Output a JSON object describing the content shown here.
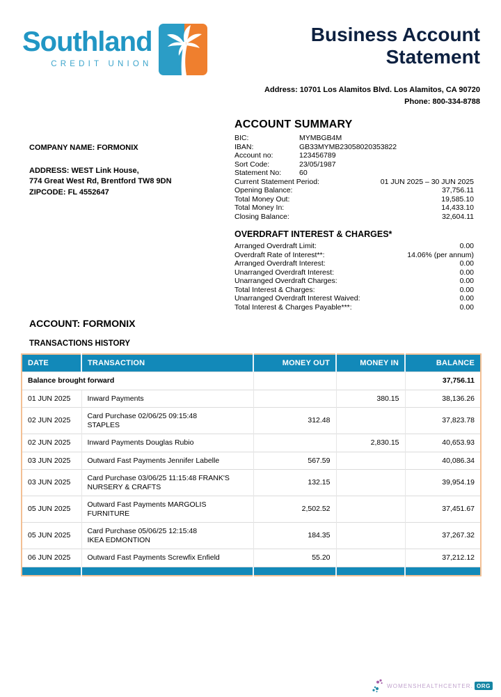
{
  "logo": {
    "name": "Southland",
    "tagline": "CREDIT UNION",
    "palm_icon": "palm-tree-icon",
    "colors": {
      "logo_teal": "#2196C4",
      "tagline_teal": "#3BA4CB",
      "badge_teal": "#2B9DC6",
      "badge_orange": "#EF7F2E"
    }
  },
  "header": {
    "title_line1": "Business Account",
    "title_line2": "Statement",
    "address": "Address: 10701 Los Alamitos Blvd. Los Alamitos, CA 90720",
    "phone": "Phone: 800-334-8788"
  },
  "company": {
    "name_line": "COMPANY NAME: FORMONIX",
    "address_line1": "ADDRESS: WEST Link House,",
    "address_line2": "774 Great West Rd, Brentford TW8 9DN",
    "zipcode_line": "ZIPCODE: FL 4552647"
  },
  "account_summary": {
    "heading": "ACCOUNT SUMMARY",
    "rows": [
      {
        "label": "BIC:",
        "value": "MYMBGB4M",
        "align": "left"
      },
      {
        "label": "IBAN:",
        "value": "GB33MYMB23058020353822",
        "align": "left"
      },
      {
        "label": "Account no:",
        "value": "123456789",
        "align": "left"
      },
      {
        "label": "Sort Code:",
        "value": "23/05/1987",
        "align": "left"
      },
      {
        "label": "Statement No:",
        "value": "60",
        "align": "left"
      },
      {
        "label": "Current Statement Period:",
        "value": "01 JUN 2025 – 30 JUN 2025",
        "align": "right"
      },
      {
        "label": "Opening Balance:",
        "value": "37,756.11",
        "align": "right"
      },
      {
        "label": "Total Money Out:",
        "value": "19,585.10",
        "align": "right"
      },
      {
        "label": "Total Money In:",
        "value": "14,433.10",
        "align": "right"
      },
      {
        "label": "Closing Balance:",
        "value": "32,604.11",
        "align": "right"
      }
    ]
  },
  "overdraft": {
    "heading": "OVERDRAFT INTEREST & CHARGES*",
    "rows": [
      {
        "label": "Arranged Overdraft Limit:",
        "value": "0.00",
        "align": "right"
      },
      {
        "label": "Overdraft Rate of Interest**:",
        "value": "14.06% (per annum)",
        "align": "right"
      },
      {
        "label": "Arranged Overdraft Interest:",
        "value": "0.00",
        "align": "right"
      },
      {
        "label": "Unarranged Overdraft Interest:",
        "value": "0.00",
        "align": "right"
      },
      {
        "label": "Unarranged Overdraft Charges:",
        "value": "0.00",
        "align": "right"
      },
      {
        "label": "Total Interest & Charges:",
        "value": "0.00",
        "align": "right"
      },
      {
        "label": "Unarranged Overdraft Interest Waived:",
        "value": "0.00",
        "align": "right"
      },
      {
        "label": "Total Interest & Charges Payable***:",
        "value": "0.00",
        "align": "right"
      }
    ]
  },
  "account_section": {
    "heading": "ACCOUNT: FORMONIX",
    "subheading": "TRANSACTIONS HISTORY"
  },
  "transactions": {
    "columns": [
      "DATE",
      "TRANSACTION",
      "MONEY OUT",
      "MONEY IN",
      "BALANCE"
    ],
    "header_color": "#1289B9",
    "border_color": "#F3C094",
    "rows": [
      {
        "date": "",
        "transaction": "Balance brought forward",
        "money_out": "",
        "money_in": "",
        "balance": "37,756.11",
        "bold": true
      },
      {
        "date": "01 JUN 2025",
        "transaction": "Inward Payments",
        "money_out": "",
        "money_in": "380.15",
        "balance": "38,136.26",
        "bold": false
      },
      {
        "date": "02 JUN 2025",
        "transaction": "Card Purchase 02/06/25 09:15:48\nSTAPLES",
        "money_out": "312.48",
        "money_in": "",
        "balance": "37,823.78",
        "bold": false
      },
      {
        "date": "02 JUN 2025",
        "transaction": "Inward Payments Douglas Rubio",
        "money_out": "",
        "money_in": "2,830.15",
        "balance": "40,653.93",
        "bold": false
      },
      {
        "date": "03 JUN 2025",
        "transaction": "Outward Fast Payments Jennifer Labelle",
        "money_out": "567.59",
        "money_in": "",
        "balance": "40,086.34",
        "bold": false
      },
      {
        "date": "03 JUN 2025",
        "transaction": "Card Purchase 03/06/25 11:15:48 FRANK'S\nNURSERY & CRAFTS",
        "money_out": "132.15",
        "money_in": "",
        "balance": "39,954.19",
        "bold": false
      },
      {
        "date": "05 JUN 2025",
        "transaction": "Outward Fast Payments MARGOLIS\nFURNITURE",
        "money_out": "2,502.52",
        "money_in": "",
        "balance": "37,451.67",
        "bold": false
      },
      {
        "date": "05 JUN 2025",
        "transaction": "Card Purchase 05/06/25 12:15:48\nIKEA EDMONTION",
        "money_out": "184.35",
        "money_in": "",
        "balance": "37,267.32",
        "bold": false
      },
      {
        "date": "06 JUN 2025",
        "transaction": "Outward Fast Payments Screwfix Enfield",
        "money_out": "55.20",
        "money_in": "",
        "balance": "37,212.12",
        "bold": false
      }
    ]
  },
  "footer": {
    "brand": "WOMENSHEALTHCENTER.",
    "brand_suffix": "ORG",
    "dots_icon": "dots-swoosh-icon",
    "colors": {
      "brand_purple": "#C1A3CD",
      "badge_teal": "#1585A3"
    }
  },
  "colors": {
    "title_navy": "#0D2040",
    "table_header_teal": "#1289B9",
    "table_border_orange": "#F3C094"
  }
}
